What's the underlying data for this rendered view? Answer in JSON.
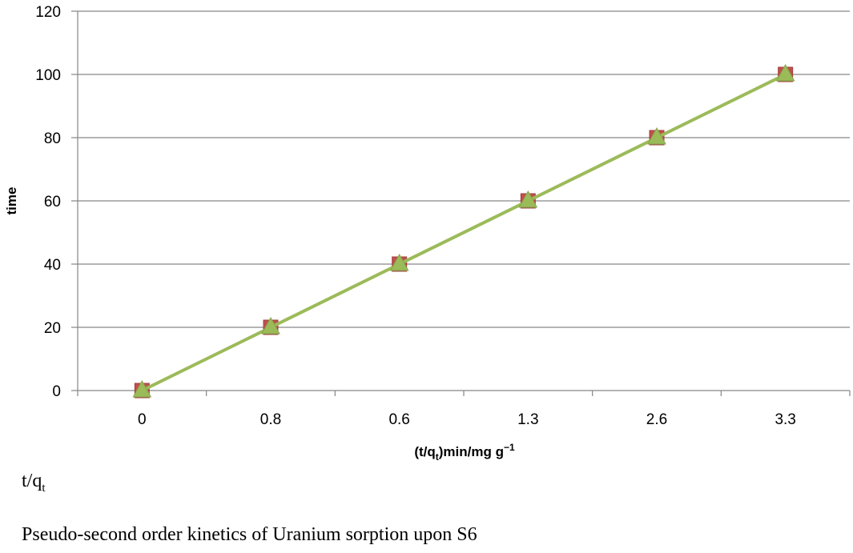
{
  "chart_data": {
    "type": "line",
    "categories": [
      "0",
      "0.8",
      "0.6",
      "1.3",
      "2.6",
      "3.3"
    ],
    "series": [
      {
        "values": [
          0,
          20,
          40,
          60,
          80,
          100
        ],
        "color": "#c0504d",
        "marker": "square"
      },
      {
        "values": [
          0,
          20,
          40,
          60,
          80,
          100
        ],
        "color": "#9bbb59",
        "marker": "triangle"
      }
    ],
    "ylim": [
      0,
      120
    ],
    "yticks": [
      0,
      20,
      40,
      60,
      80,
      100,
      120
    ],
    "ylabel": "time",
    "xlabel": {
      "pre": "(t/q",
      "sub": "t",
      "mid": ")min/mg g",
      "sup": "−1"
    },
    "grid": "horizontal"
  },
  "captions": {
    "axis_note": {
      "main": "t/q",
      "sub": "t"
    },
    "figure_caption": "Pseudo-second order kinetics of Uranium sorption upon S6"
  }
}
